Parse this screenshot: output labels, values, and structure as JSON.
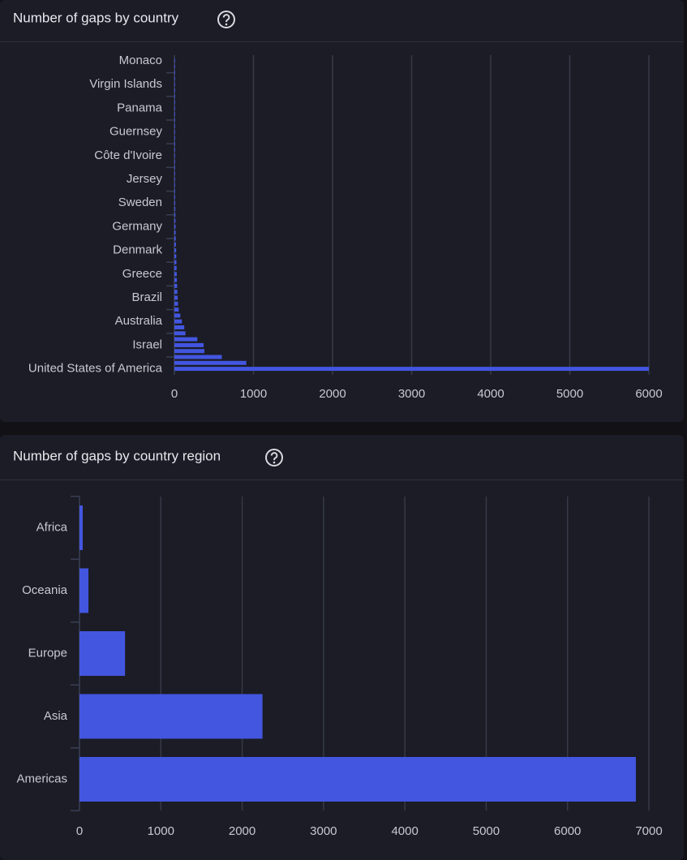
{
  "chart_data": [
    {
      "type": "bar",
      "orientation": "horizontal",
      "title": "Number of gaps by country",
      "categories": [
        "Monaco",
        null,
        null,
        null,
        "Virgin Islands",
        null,
        null,
        null,
        "Panama",
        null,
        null,
        null,
        "Guernsey",
        null,
        null,
        null,
        "Côte d'Ivoire",
        null,
        null,
        null,
        "Jersey",
        null,
        null,
        null,
        "Sweden",
        null,
        null,
        null,
        "Germany",
        null,
        null,
        null,
        "Denmark",
        null,
        null,
        null,
        "Greece",
        null,
        null,
        null,
        "Brazil",
        null,
        null,
        null,
        "Australia",
        null,
        null,
        null,
        "Israel",
        null,
        null,
        null,
        "United States of America"
      ],
      "values": [
        1,
        1,
        1,
        1,
        1,
        2,
        2,
        2,
        2,
        3,
        3,
        3,
        3,
        4,
        4,
        4,
        5,
        5,
        6,
        6,
        7,
        8,
        9,
        10,
        11,
        12,
        13,
        14,
        15,
        16,
        18,
        20,
        22,
        24,
        26,
        28,
        30,
        32,
        35,
        38,
        42,
        46,
        55,
        75,
        95,
        125,
        140,
        290,
        370,
        380,
        600,
        910,
        6000
      ],
      "color": "#4356e0",
      "xlim": [
        0,
        6000
      ],
      "xticks": [
        0,
        1000,
        2000,
        3000,
        4000,
        5000,
        6000
      ],
      "grid": true
    },
    {
      "type": "bar",
      "orientation": "horizontal",
      "title": "Number of gaps by country region",
      "categories": [
        "Africa",
        "Oceania",
        "Europe",
        "Asia",
        "Americas"
      ],
      "values": [
        40,
        110,
        560,
        2250,
        6840
      ],
      "color": "#4356e0",
      "xlim": [
        0,
        7000
      ],
      "xticks": [
        0,
        1000,
        2000,
        3000,
        4000,
        5000,
        6000,
        7000
      ],
      "grid": true
    }
  ]
}
